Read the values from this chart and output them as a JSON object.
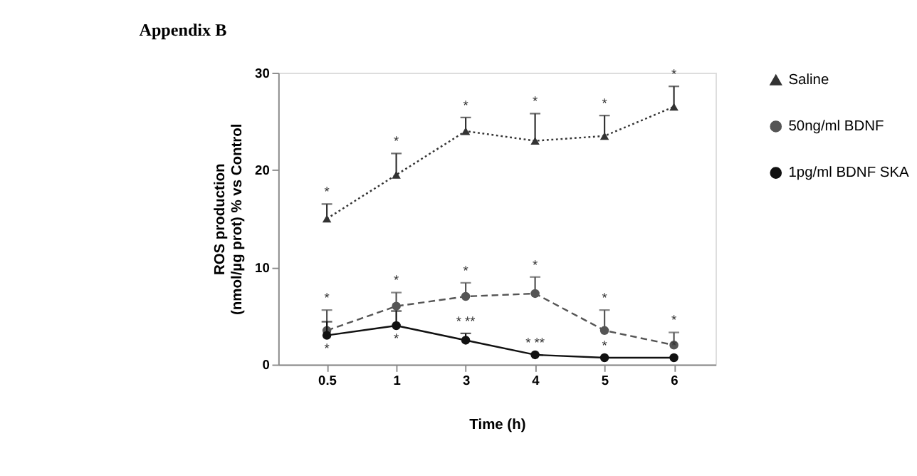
{
  "chart_data": {
    "type": "line",
    "title": "Appendix B",
    "xlabel": "Time (h)",
    "ylabel": "ROS production\n(nmol/µg prot) % vs Control",
    "categories": [
      "0.5",
      "1",
      "3",
      "4",
      "5",
      "6"
    ],
    "ylim": [
      0,
      30
    ],
    "yticks": [
      0,
      10,
      20,
      30
    ],
    "grid": false,
    "legend": "right",
    "series": [
      {
        "name": "Saline",
        "color": "#333333",
        "marker": "triangle",
        "line_style": "dotted",
        "values": [
          15,
          19.5,
          24,
          23,
          23.5,
          26.5
        ],
        "errors": [
          [
            15,
            16.5
          ],
          [
            19.5,
            21.7
          ],
          [
            24,
            25.4
          ],
          [
            23,
            25.8
          ],
          [
            23.5,
            25.6
          ],
          [
            26.5,
            28.6
          ]
        ]
      },
      {
        "name": "50ng/ml BDNF",
        "color": "#555555",
        "marker": "circle",
        "line_style": "dashed",
        "values": [
          3.5,
          6.0,
          7.0,
          7.3,
          3.5,
          2.0
        ],
        "errors": [
          [
            3.5,
            5.6
          ],
          [
            6.0,
            7.4
          ],
          [
            7.0,
            8.4
          ],
          [
            7.3,
            9.0
          ],
          [
            3.5,
            5.6
          ],
          [
            2.0,
            3.3
          ]
        ]
      },
      {
        "name": "1pg/ml BDNF SKA",
        "color": "#111111",
        "marker": "circle",
        "line_style": "solid",
        "values": [
          3.0,
          4.0,
          2.5,
          1.0,
          0.7,
          0.7
        ],
        "errors": [
          [
            3.0,
            4.4
          ],
          [
            4.0,
            5.5
          ],
          [
            2.5,
            3.2
          ],
          null,
          null,
          null
        ]
      }
    ],
    "annotations": [
      {
        "text": "*",
        "x": "0.5",
        "y": 16.5
      },
      {
        "text": "*",
        "x": "1",
        "y": 21.7
      },
      {
        "text": "*",
        "x": "3",
        "y": 25.4
      },
      {
        "text": "*",
        "x": "4",
        "y": 25.8
      },
      {
        "text": "*",
        "x": "5",
        "y": 25.6
      },
      {
        "text": "*",
        "x": "6",
        "y": 28.6
      },
      {
        "text": "*",
        "x": "0.5",
        "y": 5.6
      },
      {
        "text": "*",
        "x": "1",
        "y": 7.4
      },
      {
        "text": "*",
        "x": "3",
        "y": 8.4
      },
      {
        "text": "*",
        "x": "4",
        "y": 9.0
      },
      {
        "text": "*",
        "x": "5",
        "y": 5.6
      },
      {
        "text": "*",
        "x": "6",
        "y": 3.3
      },
      {
        "text": "*",
        "x": "0.5",
        "y": 3.0
      },
      {
        "text": "*",
        "x": "1",
        "y": 4.0
      },
      {
        "text": "* **",
        "x": "3",
        "y": 3.2
      },
      {
        "text": "* **",
        "x": "4",
        "y": 1.0
      },
      {
        "text": "*",
        "x": "5",
        "y": 0.7
      },
      {
        "text": "*",
        "x": "6",
        "y": 0.7
      }
    ]
  }
}
